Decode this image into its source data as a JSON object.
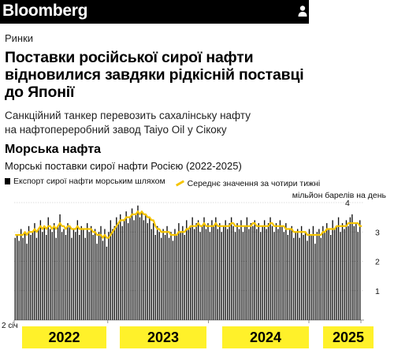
{
  "header": {
    "logo": "Bloomberg",
    "icon": "user-icon"
  },
  "article": {
    "section": "Ринки",
    "headline": "Поставки російської сирої нафти відновилися завдяки рідкісній поставці до Японії",
    "subhead": "Санкційний танкер перевозить сахалінську нафту на нафтопереробний завод Taiyo Oil у Сікоку"
  },
  "chart_data": {
    "type": "bar",
    "title": "Морська нафта",
    "subtitle": "Морські поставки сирої нафти Росією (2022-2025)",
    "legend": [
      {
        "label": "Експорт сирої нафти морським шляхом",
        "type": "bar",
        "color": "#000000"
      },
      {
        "label": "Середнє значення за чотири тижні",
        "type": "line",
        "color": "#f5c400"
      }
    ],
    "ylabel": "мільйон барелів на день",
    "ylim": [
      0,
      4
    ],
    "yticks": [
      "1",
      "2",
      "3",
      "4"
    ],
    "x_first_label": "2 січ",
    "year_bands": [
      "2022",
      "2023",
      "2024",
      "2025"
    ],
    "grid": true,
    "legend_position": "top",
    "series": [
      {
        "name": "Експорт сирої нафти морським шляхом",
        "values": [
          2.8,
          2.9,
          2.7,
          3.1,
          2.8,
          3.0,
          2.6,
          3.2,
          2.9,
          3.0,
          3.3,
          2.8,
          3.1,
          3.4,
          3.0,
          3.2,
          2.9,
          3.5,
          3.1,
          3.0,
          3.3,
          2.8,
          3.2,
          3.6,
          3.0,
          3.1,
          2.9,
          3.3,
          3.2,
          2.8,
          3.1,
          3.0,
          3.4,
          2.9,
          3.2,
          3.1,
          2.8,
          3.3,
          3.0,
          3.2,
          2.9,
          3.1,
          2.6,
          3.0,
          3.2,
          2.7,
          3.1,
          2.5,
          3.0,
          3.4,
          3.1,
          3.2,
          3.5,
          3.3,
          3.6,
          3.2,
          3.4,
          3.7,
          3.3,
          3.5,
          3.8,
          3.4,
          3.6,
          3.9,
          3.5,
          3.7,
          3.4,
          3.6,
          3.3,
          3.5,
          3.1,
          3.3,
          2.9,
          3.2,
          3.0,
          2.8,
          3.1,
          2.9,
          3.2,
          2.8,
          3.0,
          2.7,
          3.1,
          2.9,
          3.3,
          3.0,
          3.2,
          2.9,
          3.4,
          3.1,
          3.2,
          3.5,
          3.1,
          3.3,
          3.4,
          3.0,
          3.2,
          3.5,
          3.1,
          3.3,
          3.0,
          3.4,
          3.2,
          3.5,
          3.1,
          3.3,
          3.0,
          3.2,
          3.4,
          3.1,
          3.3,
          3.5,
          3.2,
          3.0,
          3.3,
          3.1,
          3.4,
          3.0,
          3.2,
          3.5,
          3.1,
          3.3,
          3.2,
          3.4,
          3.1,
          3.3,
          3.0,
          3.2,
          3.4,
          3.1,
          3.3,
          3.5,
          3.2,
          3.0,
          3.3,
          3.1,
          3.4,
          3.2,
          3.0,
          3.3,
          2.9,
          3.1,
          3.2,
          2.8,
          3.0,
          3.1,
          2.8,
          3.2,
          2.9,
          3.0,
          2.7,
          3.1,
          2.9,
          3.2,
          2.6,
          3.0,
          3.1,
          2.8,
          3.2,
          3.0,
          3.3,
          3.1,
          2.9,
          3.4,
          3.1,
          3.2,
          3.5,
          3.0,
          3.3,
          3.1,
          3.4,
          3.2,
          3.5,
          3.6,
          3.2,
          3.3,
          3.0,
          3.4
        ]
      },
      {
        "name": "Середнє значення за чотири тижні",
        "values": [
          2.9,
          2.9,
          2.9,
          2.9,
          2.9,
          3.0,
          2.9,
          3.0,
          3.0,
          3.0,
          3.1,
          3.0,
          3.1,
          3.2,
          3.1,
          3.2,
          3.1,
          3.2,
          3.2,
          3.1,
          3.2,
          3.1,
          3.2,
          3.3,
          3.2,
          3.2,
          3.1,
          3.2,
          3.2,
          3.1,
          3.1,
          3.1,
          3.2,
          3.1,
          3.1,
          3.1,
          3.1,
          3.1,
          3.1,
          3.1,
          3.0,
          3.0,
          2.9,
          2.9,
          2.9,
          2.8,
          2.9,
          2.8,
          2.8,
          2.9,
          3.0,
          3.1,
          3.2,
          3.3,
          3.4,
          3.4,
          3.4,
          3.5,
          3.5,
          3.5,
          3.6,
          3.6,
          3.6,
          3.7,
          3.6,
          3.7,
          3.6,
          3.6,
          3.5,
          3.5,
          3.4,
          3.4,
          3.2,
          3.1,
          3.1,
          3.0,
          3.0,
          3.0,
          3.0,
          3.0,
          2.9,
          2.9,
          2.9,
          2.9,
          3.0,
          3.0,
          3.0,
          3.0,
          3.1,
          3.1,
          3.2,
          3.2,
          3.2,
          3.2,
          3.3,
          3.2,
          3.2,
          3.3,
          3.2,
          3.2,
          3.2,
          3.2,
          3.2,
          3.3,
          3.2,
          3.2,
          3.2,
          3.2,
          3.2,
          3.2,
          3.2,
          3.3,
          3.3,
          3.2,
          3.2,
          3.2,
          3.2,
          3.2,
          3.2,
          3.2,
          3.2,
          3.2,
          3.3,
          3.3,
          3.2,
          3.2,
          3.2,
          3.2,
          3.2,
          3.2,
          3.2,
          3.3,
          3.3,
          3.2,
          3.2,
          3.2,
          3.2,
          3.2,
          3.2,
          3.1,
          3.1,
          3.1,
          3.1,
          3.0,
          3.0,
          3.0,
          3.0,
          3.0,
          3.0,
          3.0,
          2.9,
          2.9,
          2.9,
          2.9,
          2.9,
          2.9,
          2.9,
          2.9,
          3.0,
          3.0,
          3.1,
          3.1,
          3.1,
          3.1,
          3.1,
          3.2,
          3.2,
          3.2,
          3.2,
          3.2,
          3.2,
          3.3,
          3.3,
          3.3,
          3.3,
          3.3,
          3.3,
          3.2,
          3.2
        ]
      }
    ]
  }
}
